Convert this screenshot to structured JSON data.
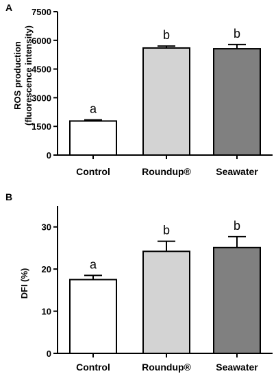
{
  "chart_data": [
    {
      "type": "bar",
      "panel": "A",
      "categories": [
        "Control",
        "Roundup®",
        "Seawater"
      ],
      "values": [
        1780,
        5600,
        5560
      ],
      "errors": [
        60,
        100,
        220
      ],
      "significance": [
        "a",
        "b",
        "b"
      ],
      "colors": [
        "#ffffff",
        "#d3d3d3",
        "#808080"
      ],
      "ylabel": [
        "ROS production",
        "(fluorescence intensity)"
      ],
      "ylim": [
        0,
        7500
      ],
      "yticks": [
        0,
        1500,
        3000,
        4500,
        6000,
        7500
      ],
      "grid": false
    },
    {
      "type": "bar",
      "panel": "B",
      "categories": [
        "Control",
        "Roundup®",
        "Seawater"
      ],
      "values": [
        17.5,
        24.2,
        25.1
      ],
      "errors": [
        1.0,
        2.4,
        2.6
      ],
      "significance": [
        "a",
        "b",
        "b"
      ],
      "colors": [
        "#ffffff",
        "#d3d3d3",
        "#808080"
      ],
      "ylabel": [
        "DFI (%)"
      ],
      "ylim": [
        0,
        35
      ],
      "yticks": [
        0,
        10,
        20,
        30
      ],
      "grid": false
    }
  ]
}
